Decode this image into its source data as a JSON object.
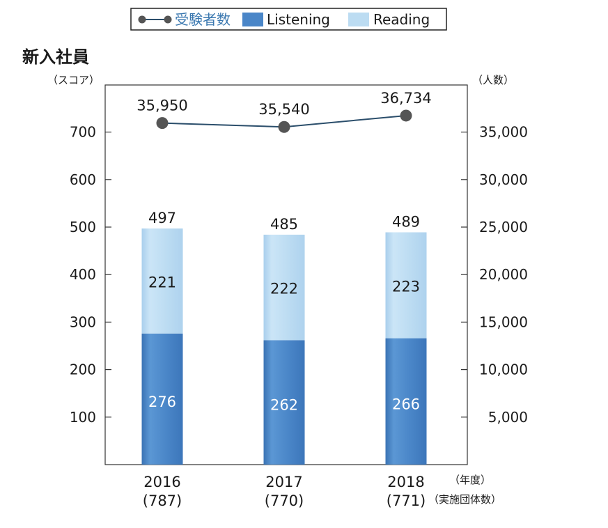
{
  "chart_data": {
    "type": "bar",
    "title": "新入社員",
    "categories": [
      "2016",
      "2017",
      "2018"
    ],
    "category_counts": [
      "(787)",
      "(770)",
      "(771)"
    ],
    "series": [
      {
        "name": "Listening",
        "values": [
          276,
          262,
          266
        ],
        "color": "#4a86c8"
      },
      {
        "name": "Reading",
        "values": [
          221,
          222,
          223
        ],
        "color": "#bcdcf2"
      },
      {
        "name": "受験者数",
        "values": [
          35950,
          35540,
          36734
        ],
        "axis": "right",
        "type": "line",
        "color": "#555555"
      }
    ],
    "totals": [
      497,
      485,
      489
    ],
    "totals_labels": [
      "497",
      "485",
      "489"
    ],
    "line_labels": [
      "35,950",
      "35,540",
      "36,734"
    ],
    "left_axis": {
      "unit_label": "（スコア）",
      "ylim": [
        0,
        800
      ],
      "ticks": [
        "100",
        "200",
        "300",
        "400",
        "500",
        "600",
        "700"
      ]
    },
    "right_axis": {
      "unit_label": "（人数）",
      "ylim": [
        0,
        40000
      ],
      "ticks": [
        "5,000",
        "10,000",
        "15,000",
        "20,000",
        "25,000",
        "30,000",
        "35,000"
      ]
    },
    "x_axis_labels": {
      "year_label": "（年度）",
      "count_label": "（実施団体数）"
    },
    "legend": {
      "placement": "top",
      "items": [
        "受験者数",
        "Listening",
        "Reading"
      ]
    },
    "grid": false
  }
}
